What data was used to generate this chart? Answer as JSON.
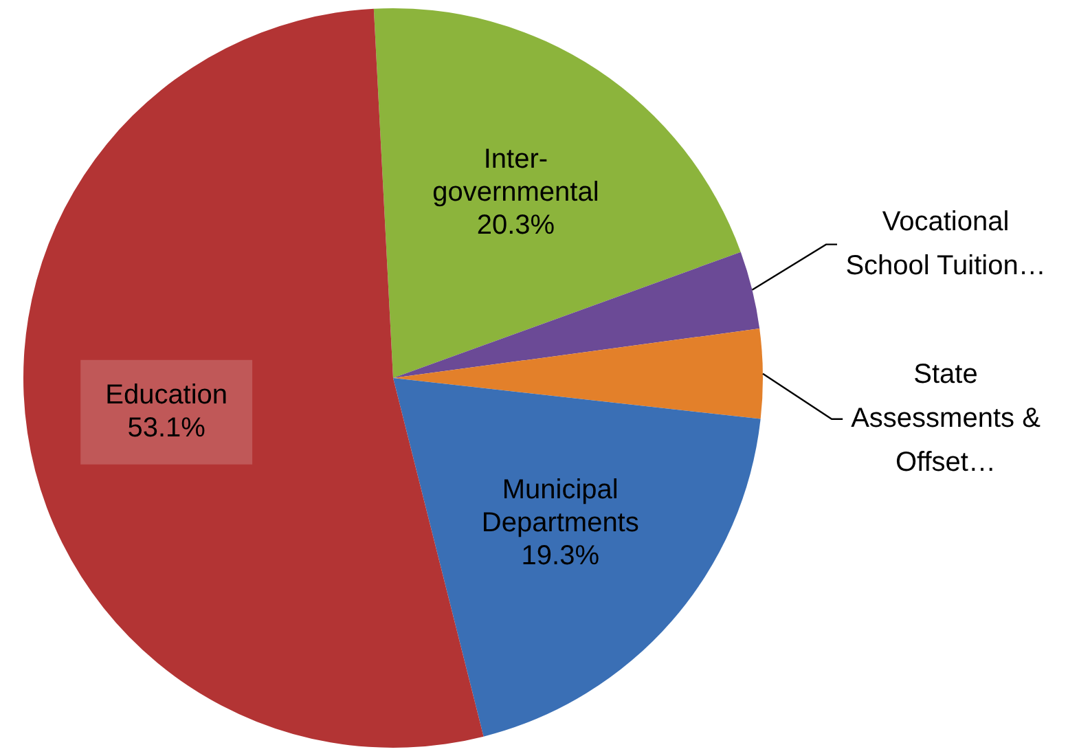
{
  "chart_data": {
    "type": "pie",
    "categories": [
      "Inter-governmental",
      "Vocational School Tuition…",
      "State Assessments & Offset…",
      "Municipal Departments",
      "Education"
    ],
    "values": [
      20.3,
      3.4,
      3.9,
      19.3,
      53.1
    ],
    "value_labels": [
      "20.3%",
      null,
      null,
      "19.3%",
      "53.1%"
    ],
    "colors": [
      "#8cb43c",
      "#6b4a96",
      "#e3802a",
      "#3a6fb5",
      "#b33434"
    ],
    "legend": false
  }
}
